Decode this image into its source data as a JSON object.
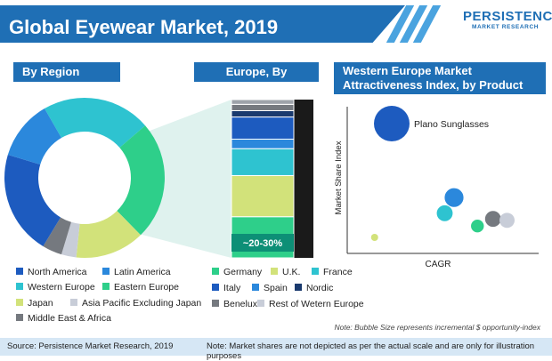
{
  "header": {
    "title": "Global Eyewear Market, 2019",
    "logo_main": "PERSISTENCE",
    "logo_sub": "MARKET RESEARCH"
  },
  "sections": {
    "region": "By Region",
    "country": "Europe, By Country",
    "attractiveness_line1": "Western Europe Market",
    "attractiveness_line2": "Attractiveness Index, by Product"
  },
  "colors": {
    "brand_blue": "#1f6fb5",
    "footer_bg": "#d6e7f5"
  },
  "chart_data": [
    {
      "type": "pie",
      "variant": "donut",
      "title": "By Region",
      "slices": [
        {
          "label": "Western Europe",
          "value": 22,
          "color": "#2ec3d0"
        },
        {
          "label": "Eastern Europe",
          "value": 24,
          "color": "#2ecf8a"
        },
        {
          "label": "Japan",
          "value": 14,
          "color": "#d2e27a"
        },
        {
          "label": "Asia Pacific Excluding Japan",
          "value": 3,
          "color": "#c8cdd8"
        },
        {
          "label": "Middle East & Africa",
          "value": 4,
          "color": "#75797f"
        },
        {
          "label": "North America",
          "value": 21,
          "color": "#1d5bbf"
        },
        {
          "label": "Latin America",
          "value": 12,
          "color": "#2b88dc"
        }
      ],
      "legend": [
        {
          "label": "North America",
          "color": "#1d5bbf"
        },
        {
          "label": "Latin America",
          "color": "#2b88dc"
        },
        {
          "label": "Western Europe",
          "color": "#2ec3d0"
        },
        {
          "label": "Eastern Europe",
          "color": "#2ecf8a"
        },
        {
          "label": "Japan",
          "color": "#d2e27a"
        },
        {
          "label": "Asia Pacific Excluding Japan",
          "color": "#c8cdd8"
        },
        {
          "label": "Middle East & Africa",
          "color": "#75797f"
        }
      ],
      "annotation": "Note: Market shares are not depicted as per the actual scale and are only for illustration purposes"
    },
    {
      "type": "bar",
      "variant": "stacked-100",
      "title": "Europe, By Country",
      "series": [
        {
          "name": "Germany",
          "value": 26,
          "color": "#2ecf8a"
        },
        {
          "name": "U.K.",
          "value": 26,
          "color": "#d2e27a"
        },
        {
          "name": "France",
          "value": 17,
          "color": "#2ec3d0"
        },
        {
          "name": "Spain",
          "value": 6,
          "color": "#2b88dc"
        },
        {
          "name": "Italy",
          "value": 14,
          "color": "#1d5bbf"
        },
        {
          "name": "Nordic",
          "value": 4,
          "color": "#1a3a6e"
        },
        {
          "name": "Benelux",
          "value": 4,
          "color": "#75797f"
        },
        {
          "name": "Rest of Wetern Europe",
          "value": 3,
          "color": "#9ea3aa"
        }
      ],
      "label": "~20-30%",
      "legend": [
        {
          "label": "Germany",
          "color": "#2ecf8a"
        },
        {
          "label": "U.K.",
          "color": "#d2e27a"
        },
        {
          "label": "France",
          "color": "#2ec3d0"
        },
        {
          "label": "Italy",
          "color": "#1d5bbf"
        },
        {
          "label": "Spain",
          "color": "#2b88dc"
        },
        {
          "label": "Nordic",
          "color": "#1a3a6e"
        },
        {
          "label": "Benelux",
          "color": "#75797f"
        },
        {
          "label": "Rest of Wetern Europe",
          "color": "#c8cdd8"
        }
      ]
    },
    {
      "type": "scatter",
      "variant": "bubble",
      "title": "Western Europe Market Attractiveness Index, by Product",
      "xlabel": "CAGR",
      "ylabel": "Market Share Index",
      "xlim": [
        0,
        100
      ],
      "ylim": [
        0,
        100
      ],
      "grid": false,
      "points": [
        {
          "x": 24,
          "y": 85,
          "size": 100,
          "color": "#1d5bbf",
          "label": "Plano Sunglasses"
        },
        {
          "x": 64,
          "y": 33,
          "size": 28,
          "color": "#2b88dc",
          "label": ""
        },
        {
          "x": 58,
          "y": 22,
          "size": 20,
          "color": "#2ec3d0",
          "label": ""
        },
        {
          "x": 79,
          "y": 13,
          "size": 13,
          "color": "#2ecf8a",
          "label": ""
        },
        {
          "x": 89,
          "y": 18,
          "size": 20,
          "color": "#75797f",
          "label": ""
        },
        {
          "x": 98,
          "y": 17,
          "size": 18,
          "color": "#c8cdd8",
          "label": ""
        },
        {
          "x": 13,
          "y": 5,
          "size": 4,
          "color": "#d2e27a",
          "label": ""
        }
      ],
      "annotation": "Note: Bubble Size  represents incremental $ opportunity-index"
    }
  ],
  "footer": {
    "source": "Source: Persistence Market Research, 2019"
  }
}
